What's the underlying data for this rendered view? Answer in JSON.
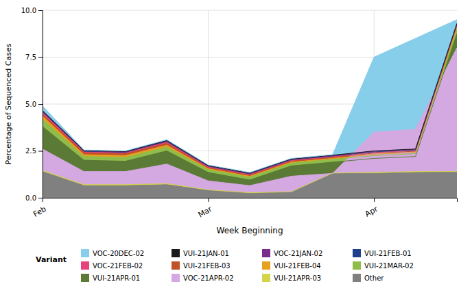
{
  "chart_data": {
    "type": "area",
    "xlabel": "Week Beginning",
    "ylabel": "Percentage of Sequenced Cases",
    "legend_title": "Variant",
    "categories": [
      "Feb",
      null,
      null,
      null,
      "Mar",
      null,
      null,
      null,
      "Apr",
      null,
      null
    ],
    "ylim": [
      0,
      10.0
    ],
    "yticks": [
      {
        "value": 0.0,
        "label": "0.0"
      },
      2.5,
      {
        "value": 5.0,
        "label": "5.0"
      },
      7.5,
      {
        "value": 10.0,
        "label": "10.0"
      }
    ],
    "grid": true,
    "series": [
      {
        "name": "VOC-20DEC-02",
        "color": "#87CEEB",
        "values": [
          4.9,
          2.55,
          2.5,
          3.1,
          1.75,
          1.35,
          2.1,
          2.3,
          7.5,
          8.5,
          9.5
        ]
      },
      {
        "name": "VUI-21JAN-01",
        "color": "#1a1a1a",
        "values": [
          4.65,
          2.52,
          2.47,
          3.05,
          1.72,
          1.32,
          2.07,
          2.27,
          2.5,
          2.6,
          9.3
        ]
      },
      {
        "name": "VOC-21JAN-02",
        "color": "#7B2D8B",
        "values": [
          4.62,
          2.5,
          2.45,
          3.02,
          1.7,
          1.3,
          2.05,
          2.25,
          2.48,
          2.58,
          9.27
        ]
      },
      {
        "name": "VUI-21FEB-01",
        "color": "#1e3f8c",
        "values": [
          4.6,
          2.48,
          2.43,
          3.0,
          1.68,
          1.28,
          2.03,
          2.23,
          2.45,
          2.55,
          9.25
        ]
      },
      {
        "name": "VOC-21FEB-02",
        "color": "#e8427a",
        "values": [
          4.55,
          2.45,
          2.4,
          2.97,
          1.65,
          1.25,
          2.0,
          2.2,
          2.42,
          2.52,
          9.22
        ]
      },
      {
        "name": "VUI-21FEB-03",
        "color": "#c0522a",
        "values": [
          4.45,
          2.4,
          2.35,
          2.9,
          1.6,
          1.2,
          1.95,
          2.15,
          2.38,
          2.48,
          9.18
        ]
      },
      {
        "name": "VUI-21FEB-04",
        "color": "#e8a020",
        "values": [
          4.35,
          2.3,
          2.25,
          2.8,
          1.55,
          1.15,
          1.9,
          2.1,
          2.32,
          2.42,
          9.12
        ]
      },
      {
        "name": "VUI-21MAR-02",
        "color": "#8fbc4a",
        "values": [
          4.2,
          2.2,
          2.15,
          2.7,
          1.5,
          1.1,
          1.85,
          2.05,
          2.25,
          2.35,
          8.95
        ]
      },
      {
        "name": "VUI-21APR-01",
        "color": "#5a7a35",
        "values": [
          3.8,
          2.0,
          1.95,
          2.5,
          1.35,
          0.95,
          1.7,
          1.9,
          2.1,
          2.2,
          8.75
        ]
      },
      {
        "name": "VOC-21APR-02",
        "color": "#d4a8e0",
        "values": [
          2.6,
          1.4,
          1.4,
          1.8,
          0.9,
          0.65,
          1.15,
          1.3,
          3.5,
          3.65,
          8.0
        ]
      },
      {
        "name": "VUI-21APR-03",
        "color": "#d4d44a",
        "values": [
          1.45,
          0.7,
          0.7,
          0.75,
          0.42,
          0.27,
          0.32,
          1.32,
          1.35,
          1.4,
          1.4
        ]
      },
      {
        "name": "Other",
        "color": "#808080",
        "values": [
          1.4,
          0.65,
          0.65,
          0.7,
          0.4,
          0.25,
          0.3,
          1.3,
          1.3,
          1.35,
          1.38
        ]
      }
    ]
  }
}
